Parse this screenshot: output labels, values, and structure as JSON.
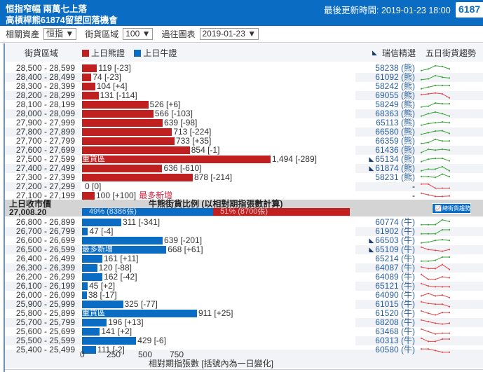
{
  "header": {
    "title_line1": "恒指窄幅 兩萬七上落",
    "title_line2": "高槓桿熊61874留望回落機會",
    "updated": "最後更新時間: 2019-01-23 18:00",
    "code_box": "6187"
  },
  "controls": {
    "asset_label": "相關資產",
    "asset_value": "恒指 ▼",
    "zone_label": "街貨區域",
    "zone_value": "100 ▼",
    "history_label": "過往圖表",
    "history_value": "2019-01-23 ▼"
  },
  "columns": {
    "zone": "街貨區域",
    "bear": "上日熊證",
    "bull": "上日牛證",
    "picks": "瑞信精選",
    "trend": "五日街貨趨勢"
  },
  "colors": {
    "bear": "#c0201f",
    "bull": "#0b6cc4",
    "up": "#3aa33a",
    "down": "#e0474a"
  },
  "bear_rows": [
    {
      "range": "28,500 - 28,599",
      "value": 119,
      "label": "119 [-23]",
      "code": "58238 (熊)",
      "trend": [
        1,
        2,
        4,
        3.5,
        2
      ],
      "dir": "up"
    },
    {
      "range": "28,400 - 28,499",
      "value": 74,
      "label": "74 [-23]",
      "code": "61092 (熊)",
      "trend": [
        1,
        1.5,
        3.5,
        2.5,
        2
      ],
      "dir": "up"
    },
    {
      "range": "28,300 - 28,399",
      "value": 104,
      "label": "104 [+4]",
      "code": "58242 (熊)",
      "trend": [
        1,
        2,
        3,
        3,
        3
      ],
      "dir": "up"
    },
    {
      "range": "28,200 - 28,299",
      "value": 131,
      "label": "131 [-114]",
      "code": "69055 (熊)",
      "trend": [
        3,
        3.5,
        4,
        3.5,
        1
      ],
      "dir": "down"
    },
    {
      "range": "28,100 - 28,199",
      "value": 526,
      "label": "526 [+6]",
      "code": "58249 (熊)",
      "trend": [
        1,
        1.5,
        3.5,
        3,
        3
      ],
      "dir": "up"
    },
    {
      "range": "28,000 - 28,099",
      "value": 566,
      "label": "566 [-103]",
      "code": "68363 (熊)",
      "trend": [
        1,
        2.5,
        3.5,
        2.5,
        1
      ],
      "dir": "up"
    },
    {
      "range": "27,900 - 27,999",
      "value": 639,
      "label": "639 [-98]",
      "code": "65113 (熊)",
      "trend": [
        1,
        2,
        2.5,
        3,
        2.5
      ],
      "dir": "up"
    },
    {
      "range": "27,800 - 27,899",
      "value": 713,
      "label": "713 [-224]",
      "code": "66580 (熊)",
      "trend": [
        1,
        2,
        3,
        3.2,
        1.5
      ],
      "dir": "up"
    },
    {
      "range": "27,700 - 27,799",
      "value": 733,
      "label": "733 [+35]",
      "code": "66359 (熊)",
      "trend": [
        1,
        1.5,
        3.5,
        2.5,
        2.5
      ],
      "dir": "up"
    },
    {
      "range": "27,600 - 27,699",
      "value": 854,
      "label": "854 [-1]",
      "code": "61436 (熊)",
      "trend": [
        1,
        3,
        2.5,
        3,
        2.5
      ],
      "dir": "up"
    },
    {
      "range": "27,500 - 27,599",
      "value": 1494,
      "label": "1,494 [-289]",
      "tag": "重貨區",
      "code": "65134 (熊)",
      "pick": true,
      "trend": [
        1,
        2.5,
        3,
        3,
        1.5
      ],
      "dir": "up"
    },
    {
      "range": "27,400 - 27,499",
      "value": 636,
      "label": "636 [-610]",
      "code": "61874 (熊)",
      "pick": true,
      "trend": [
        1,
        2,
        2,
        3.5,
        1
      ],
      "dir": "up"
    },
    {
      "range": "27,300 - 27,399",
      "value": 878,
      "label": "878 [-214]",
      "code": "58231 (熊)",
      "trend": [
        3,
        3,
        2.5,
        4.5,
        3
      ],
      "dir": "up"
    },
    {
      "range": "27,200 - 27,299",
      "value": 0,
      "label": "0 [0]",
      "code": "-",
      "trend": [
        4,
        4,
        1.5,
        1.5,
        1.5
      ],
      "dir": "down"
    },
    {
      "range": "27,100 - 27,199",
      "value": 100,
      "label": "100 [+100]",
      "note": "最多新增",
      "code": "-",
      "trend": [
        4,
        3,
        2,
        2,
        2.3
      ],
      "dir": "down"
    }
  ],
  "summary": {
    "prev_close_label": "上日收市價",
    "prev_close": "27,008.20",
    "ratio_title": "牛熊街貨比例 (以相對期指張數計算)",
    "bull_pct": 49,
    "bull_text": "49% (8386張)",
    "bear_pct": 51,
    "bear_text": "51% (8700張)",
    "button": "總街貨趨勢"
  },
  "bull_rows": [
    {
      "range": "26,800 - 26,899",
      "value": 311,
      "label": "311 [-341]",
      "code": "60774 (牛)",
      "trend": [
        1,
        1,
        1,
        4,
        3
      ],
      "dir": "up"
    },
    {
      "range": "26,700 - 26,799",
      "value": 47,
      "label": "47 [-4]",
      "code": "61902 (牛)",
      "trend": [
        1,
        1,
        1,
        3.5,
        3.5
      ],
      "dir": "up"
    },
    {
      "range": "26,600 - 26,699",
      "value": 639,
      "label": "639 [-201]",
      "code": "66503 (牛)",
      "pick": true,
      "trend": [
        1,
        1.5,
        2.5,
        3,
        2.5
      ],
      "dir": "up"
    },
    {
      "range": "26,500 - 26,599",
      "value": 668,
      "label": "668 [+61]",
      "tag": "最多新增",
      "code": "65109 (牛)",
      "pick": true,
      "trend": [
        4,
        2.5,
        2,
        1.5,
        2.5
      ],
      "dir": "down"
    },
    {
      "range": "26,400 - 26,499",
      "value": 161,
      "label": "161 [+11]",
      "code": "65214 (牛)",
      "trend": [
        1,
        1,
        1.5,
        3.5,
        3.5
      ],
      "dir": "up"
    },
    {
      "range": "26,300 - 26,399",
      "value": 120,
      "label": "120 [-88]",
      "code": "64087 (牛)",
      "trend": [
        3,
        2,
        2,
        4.5,
        1.5
      ],
      "dir": "down"
    },
    {
      "range": "26,200 - 26,299",
      "value": 162,
      "label": "162 [-42]",
      "code": "64089 (牛)",
      "trend": [
        4,
        1,
        1,
        2.5,
        2
      ],
      "dir": "down"
    },
    {
      "range": "26,100 - 26,199",
      "value": 45,
      "label": "45 [+2]",
      "code": "65121 (牛)",
      "trend": [
        4,
        2.5,
        2,
        2,
        2
      ],
      "dir": "down"
    },
    {
      "range": "26,000 - 26,099",
      "value": 38,
      "label": "38 [-17]",
      "code": "64090 (牛)",
      "trend": [
        2,
        3.5,
        2,
        2.5,
        1
      ],
      "dir": "down"
    },
    {
      "range": "25,900 - 25,999",
      "value": 325,
      "label": "325 [-77]",
      "code": "61015 (牛)",
      "trend": [
        4,
        3,
        2.5,
        2.5,
        1
      ],
      "dir": "down"
    },
    {
      "range": "25,800 - 25,899",
      "value": 911,
      "label": "911 [+25]",
      "tag": "重貨區",
      "code": "61520 (牛)",
      "trend": [
        4,
        2.5,
        1.5,
        3,
        3
      ],
      "dir": "down"
    },
    {
      "range": "25,700 - 25,799",
      "value": 196,
      "label": "196 [+13]",
      "code": "68208 (牛)",
      "trend": [
        4,
        3,
        2,
        1.5,
        2
      ],
      "dir": "down"
    },
    {
      "range": "25,600 - 25,699",
      "value": 141,
      "label": "141 [+2]",
      "code": "63468 (牛)",
      "trend": [
        4,
        2.5,
        1,
        1.5,
        1.5
      ],
      "dir": "down"
    },
    {
      "range": "25,500 - 25,599",
      "value": 429,
      "label": "429 [-6]",
      "code": "60313 (牛)",
      "trend": [
        4,
        2,
        2,
        3.5,
        3.5
      ],
      "dir": "down"
    },
    {
      "range": "25,400 - 25,499",
      "value": 111,
      "label": "111 [-2]",
      "code": "60580 (牛)",
      "trend": [
        3,
        3,
        2,
        1,
        1
      ],
      "dir": "down"
    }
  ],
  "axis": {
    "ticks": [
      "0",
      "250",
      "500",
      "750"
    ],
    "tick_values": [
      0,
      250,
      500,
      750
    ],
    "caption": "相對期指張數 [括號內為一日變化]"
  }
}
